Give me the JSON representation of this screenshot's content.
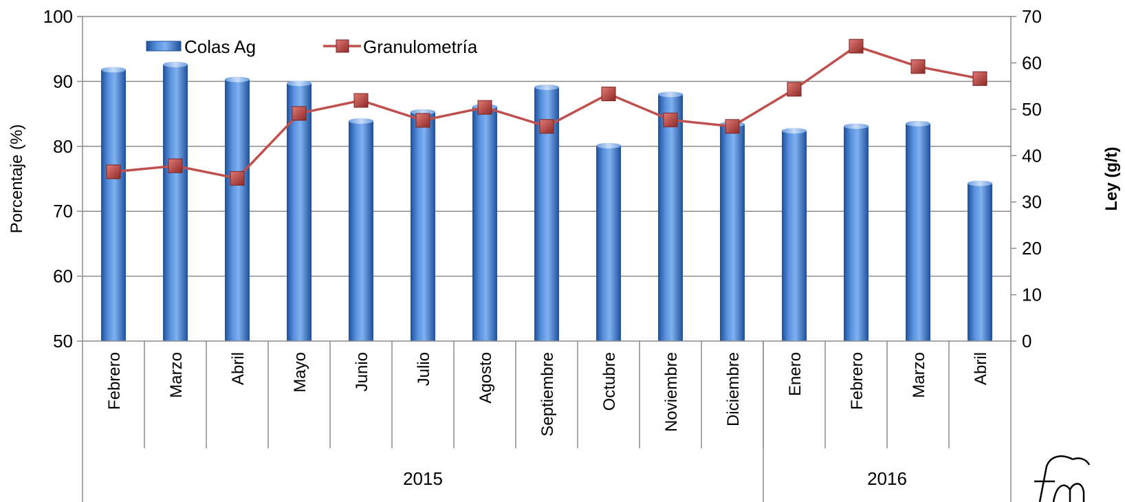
{
  "chart_data": {
    "type": "bar+line",
    "categories": [
      "Febrero",
      "Marzo",
      "Abril",
      "Mayo",
      "Junio",
      "Julio",
      "Agosto",
      "Septiembre",
      "Octubre",
      "Noviembre",
      "Diciembre",
      "Enero",
      "Febrero",
      "Marzo",
      "Abril"
    ],
    "groups": [
      {
        "label": "2015",
        "count": 11
      },
      {
        "label": "2016",
        "count": 4
      }
    ],
    "series": [
      {
        "name": "Colas Ag",
        "type": "bar",
        "axis": "left",
        "values": [
          91.8,
          92.6,
          90.3,
          89.7,
          83.9,
          85.3,
          86.1,
          89.1,
          80.1,
          88.0,
          83.4,
          82.4,
          83.1,
          83.5,
          74.3
        ],
        "color": "#4a7fc8"
      },
      {
        "name": "Granulometría",
        "type": "line",
        "axis": "right",
        "values": [
          36.5,
          37.8,
          35.1,
          49.1,
          51.9,
          47.6,
          50.4,
          46.3,
          53.3,
          47.7,
          46.3,
          54.3,
          63.6,
          59.2,
          56.6
        ],
        "color": "#c0504d"
      }
    ],
    "ylabel": "Porcentaje (%)",
    "y2label": "Ley (g/t)",
    "ylim": [
      50,
      100
    ],
    "yticks": [
      50,
      60,
      70,
      80,
      90,
      100
    ],
    "y2lim": [
      0,
      70
    ],
    "y2ticks": [
      0,
      10,
      20,
      30,
      40,
      50,
      60,
      70
    ],
    "grid": true,
    "legend_position": "top-left"
  }
}
